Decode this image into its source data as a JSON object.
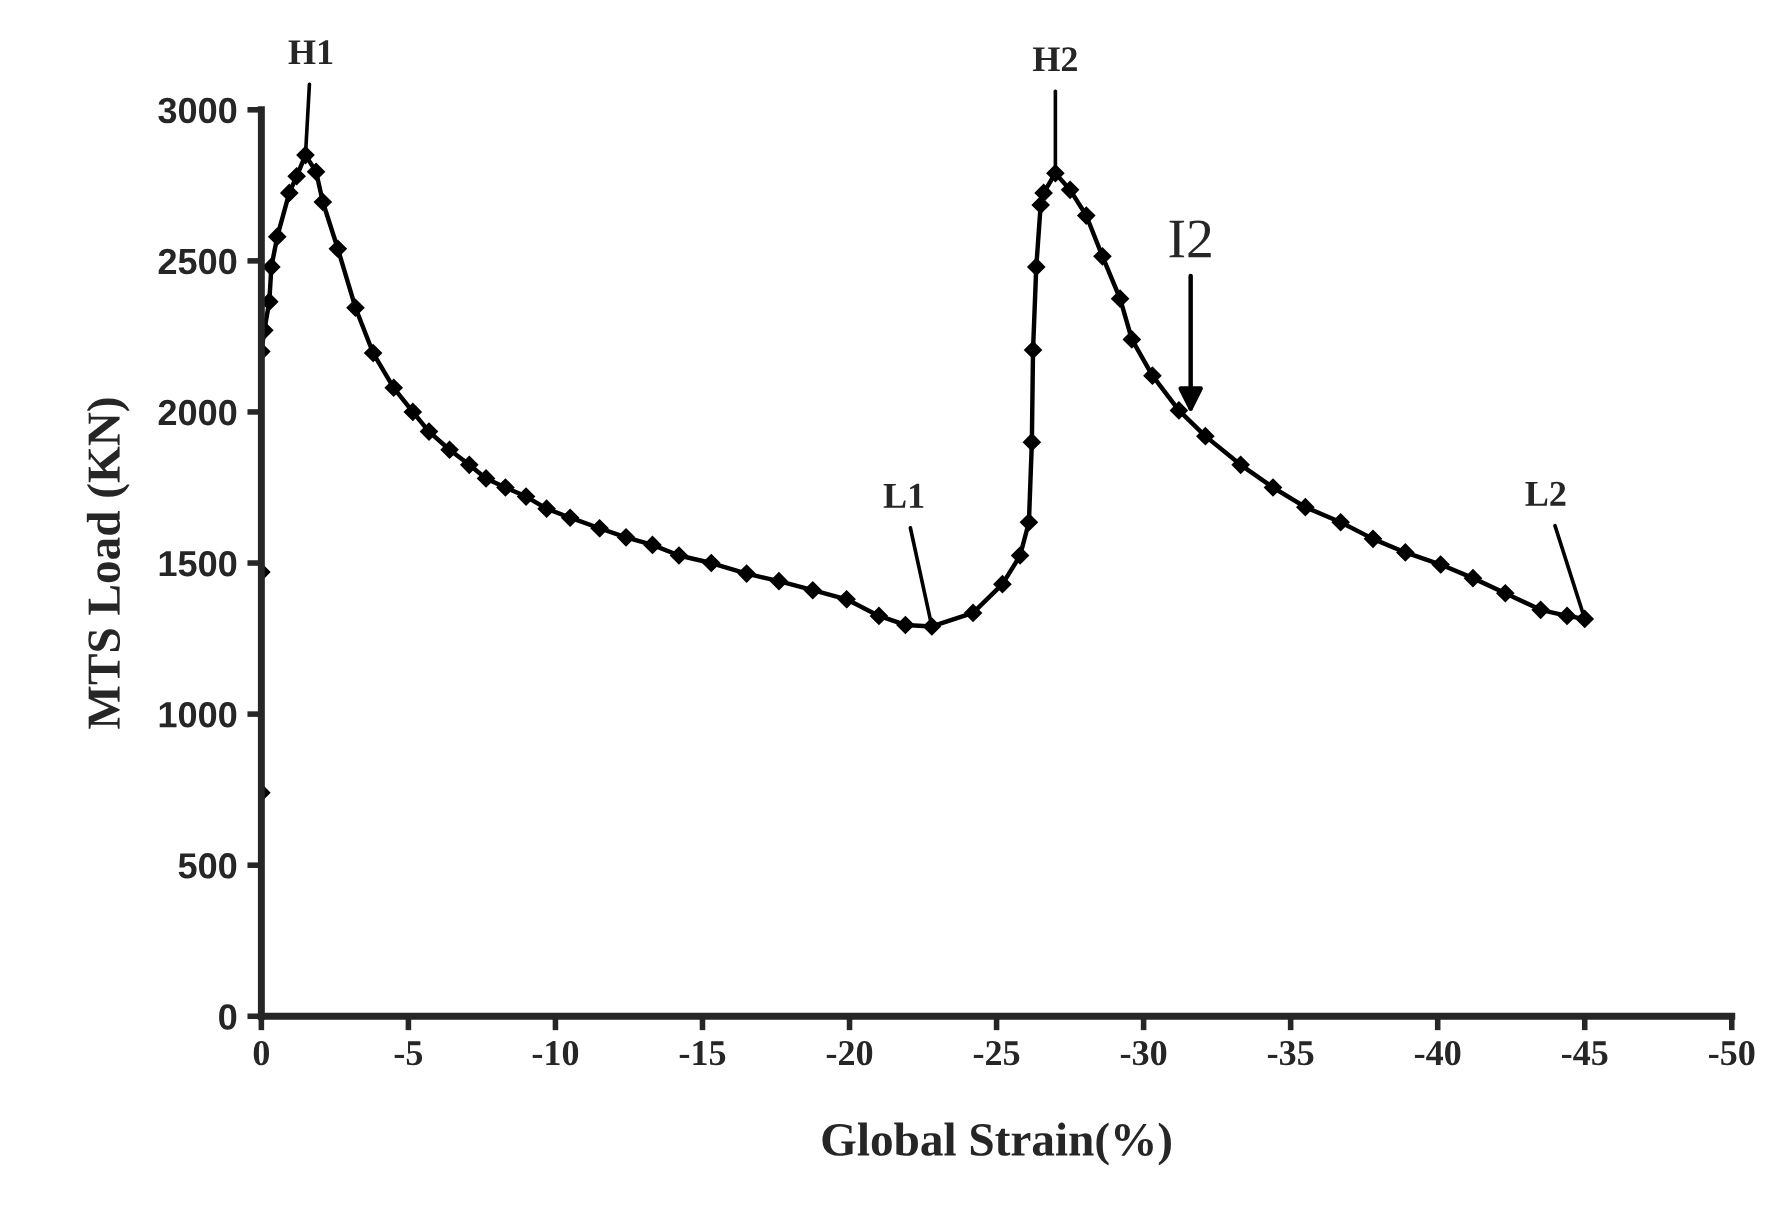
{
  "chart_data": {
    "type": "line",
    "xlabel": "Global Strain(%)",
    "ylabel": "MTS Load (KN)",
    "xlim": [
      0,
      -50
    ],
    "xticks": [
      0,
      -5,
      -10,
      -15,
      -20,
      -25,
      -30,
      -35,
      -40,
      -45,
      -50
    ],
    "ylim": [
      0,
      3000
    ],
    "yticks": [
      0,
      500,
      1000,
      1500,
      2000,
      2500,
      3000
    ],
    "grid": false,
    "marker": "diamond",
    "line_style": "solid",
    "series": [
      {
        "color": "#000000",
        "x": [
          0,
          0,
          0,
          -0.1,
          -0.27,
          -0.34,
          -0.54,
          -0.95,
          -1.2,
          -1.5,
          -1.86,
          -2.09,
          -2.6,
          -3.2,
          -3.8,
          -4.5,
          -5.15,
          -5.7,
          -6.4,
          -7.07,
          -7.64,
          -8.3,
          -9.0,
          -9.7,
          -10.5,
          -11.5,
          -12.4,
          -13.3,
          -14.2,
          -15.3,
          -16.5,
          -17.6,
          -18.75,
          -19.9,
          -21.0,
          -21.9,
          -22.8,
          -24.2,
          -25.2,
          -25.8,
          -26.1,
          -26.2,
          -26.24,
          -26.35,
          -26.5,
          -26.6,
          -27.0,
          -27.5,
          -28.05,
          -28.6,
          -29.2,
          -29.6,
          -30.3,
          -31.2,
          -32.1,
          -33.3,
          -34.4,
          -35.5,
          -36.7,
          -37.8,
          -38.9,
          -40.1,
          -41.2,
          -42.3,
          -43.5,
          -44.4,
          -45.0
        ],
        "values": [
          740,
          1470,
          2200,
          2270,
          2365,
          2480,
          2580,
          2725,
          2780,
          2850,
          2795,
          2695,
          2540,
          2345,
          2195,
          2080,
          2000,
          1935,
          1875,
          1825,
          1780,
          1750,
          1720,
          1680,
          1650,
          1615,
          1585,
          1560,
          1525,
          1500,
          1465,
          1440,
          1410,
          1380,
          1325,
          1295,
          1290,
          1335,
          1430,
          1525,
          1635,
          1900,
          2205,
          2480,
          2685,
          2725,
          2790,
          2735,
          2650,
          2515,
          2375,
          2240,
          2120,
          2005,
          1920,
          1825,
          1750,
          1685,
          1635,
          1580,
          1535,
          1495,
          1450,
          1400,
          1345,
          1325,
          1315
        ]
      }
    ],
    "annotations": [
      {
        "text": "H1",
        "x": -1.5,
        "y": 2850
      },
      {
        "text": "H2",
        "x": -27.0,
        "y": 2790
      },
      {
        "text": "L1",
        "x": -22.8,
        "y": 1290
      },
      {
        "text": "L2",
        "x": -45.0,
        "y": 1315
      },
      {
        "text": "I2",
        "x": -31.6,
        "y": 1995
      }
    ]
  }
}
